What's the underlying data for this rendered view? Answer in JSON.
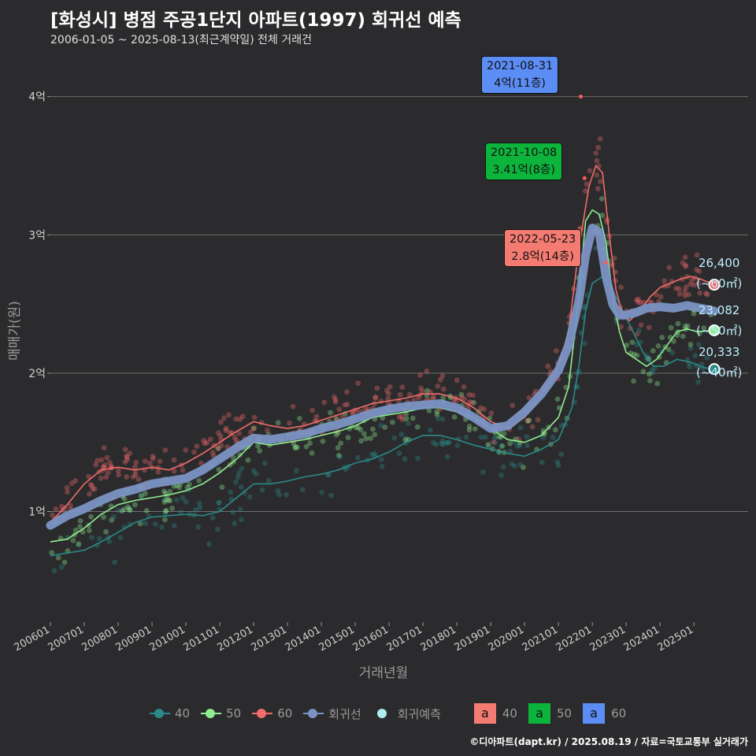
{
  "header": {
    "title": "[화성시] 병점 주공1단지 아파트(1997) 회귀선 예측",
    "subtitle": "2006-01-05 ~ 2025-08-13(최근계약일) 전체 거래건"
  },
  "footer": {
    "credit": "©디아파트(dapt.kr) / 2025.08.19 / 자료=국토교통부 실거래가"
  },
  "colors": {
    "background": "#2b2b2d",
    "grid": "#6e6e6e",
    "s40": "#2a8a8a",
    "s50": "#90ee90",
    "s60": "#f26b6b",
    "trend": "#7b93c4",
    "predict": "#aeeef0",
    "box40": "#f47b72",
    "box50": "#0db43c",
    "box60": "#5b8df5"
  },
  "chart_data": {
    "type": "scatter",
    "xlabel": "거래년월",
    "ylabel": "매매가(원)",
    "xlim": [
      2006.0,
      2026.6
    ],
    "ylim": [
      0.2,
      4.3
    ],
    "x_ticks": [
      {
        "v": 2006.0,
        "label": "200601"
      },
      {
        "v": 2007.0,
        "label": "200701"
      },
      {
        "v": 2008.0,
        "label": "200801"
      },
      {
        "v": 2009.0,
        "label": "200901"
      },
      {
        "v": 2010.0,
        "label": "201001"
      },
      {
        "v": 2011.0,
        "label": "201101"
      },
      {
        "v": 2012.0,
        "label": "201201"
      },
      {
        "v": 2013.0,
        "label": "201301"
      },
      {
        "v": 2014.0,
        "label": "201401"
      },
      {
        "v": 2015.0,
        "label": "201501"
      },
      {
        "v": 2016.0,
        "label": "201601"
      },
      {
        "v": 2017.0,
        "label": "201701"
      },
      {
        "v": 2018.0,
        "label": "201801"
      },
      {
        "v": 2019.0,
        "label": "201901"
      },
      {
        "v": 2020.0,
        "label": "202001"
      },
      {
        "v": 2021.0,
        "label": "202101"
      },
      {
        "v": 2022.0,
        "label": "202201"
      },
      {
        "v": 2023.0,
        "label": "202301"
      },
      {
        "v": 2024.0,
        "label": "202401"
      },
      {
        "v": 2025.0,
        "label": "202501"
      }
    ],
    "y_ticks": [
      {
        "v": 1,
        "label": "1억"
      },
      {
        "v": 2,
        "label": "2억"
      },
      {
        "v": 3,
        "label": "3억"
      },
      {
        "v": 4,
        "label": "4억"
      }
    ],
    "series": [
      {
        "name": "40",
        "color_key": "s40",
        "x": [
          2006.0,
          2006.5,
          2007.0,
          2007.5,
          2008.0,
          2008.5,
          2009.0,
          2009.5,
          2010.0,
          2010.5,
          2011.0,
          2011.5,
          2012.0,
          2012.5,
          2013.0,
          2013.5,
          2014.0,
          2014.5,
          2015.0,
          2015.5,
          2016.0,
          2016.5,
          2017.0,
          2017.5,
          2018.0,
          2018.5,
          2019.0,
          2019.5,
          2020.0,
          2020.5,
          2021.0,
          2021.4,
          2021.6,
          2021.8,
          2022.0,
          2022.3,
          2022.6,
          2022.9,
          2023.2,
          2023.5,
          2023.8,
          2024.1,
          2024.5,
          2024.9,
          2025.3,
          2025.6
        ],
        "values": [
          0.68,
          0.7,
          0.72,
          0.78,
          0.85,
          0.92,
          0.96,
          0.97,
          0.98,
          0.97,
          1.0,
          1.1,
          1.2,
          1.2,
          1.22,
          1.25,
          1.27,
          1.3,
          1.35,
          1.38,
          1.43,
          1.5,
          1.55,
          1.55,
          1.52,
          1.48,
          1.45,
          1.42,
          1.4,
          1.45,
          1.52,
          1.75,
          2.05,
          2.45,
          2.65,
          2.7,
          2.6,
          2.45,
          2.3,
          2.15,
          2.05,
          2.05,
          2.1,
          2.08,
          2.04,
          2.03
        ]
      },
      {
        "name": "50",
        "color_key": "s50",
        "x": [
          2006.0,
          2006.5,
          2007.0,
          2007.5,
          2008.0,
          2008.5,
          2009.0,
          2009.5,
          2010.0,
          2010.5,
          2011.0,
          2011.5,
          2012.0,
          2012.5,
          2013.0,
          2013.5,
          2014.0,
          2014.5,
          2015.0,
          2015.5,
          2016.0,
          2016.5,
          2017.0,
          2017.5,
          2018.0,
          2018.5,
          2019.0,
          2019.5,
          2020.0,
          2020.5,
          2021.0,
          2021.3,
          2021.6,
          2021.8,
          2022.0,
          2022.2,
          2022.4,
          2022.6,
          2022.8,
          2023.0,
          2023.3,
          2023.6,
          2023.9,
          2024.2,
          2024.5,
          2024.8,
          2025.1,
          2025.6
        ],
        "values": [
          0.78,
          0.8,
          0.88,
          0.98,
          1.05,
          1.08,
          1.1,
          1.12,
          1.15,
          1.2,
          1.28,
          1.38,
          1.5,
          1.48,
          1.5,
          1.52,
          1.55,
          1.58,
          1.62,
          1.68,
          1.7,
          1.72,
          1.75,
          1.75,
          1.72,
          1.68,
          1.6,
          1.52,
          1.5,
          1.55,
          1.68,
          1.9,
          2.55,
          3.1,
          3.18,
          3.15,
          2.95,
          2.55,
          2.3,
          2.15,
          2.1,
          2.05,
          2.1,
          2.2,
          2.3,
          2.32,
          2.3,
          2.31
        ]
      },
      {
        "name": "60",
        "color_key": "s60",
        "x": [
          2006.0,
          2006.5,
          2007.0,
          2007.5,
          2008.0,
          2008.5,
          2009.0,
          2009.5,
          2010.0,
          2010.5,
          2011.0,
          2011.5,
          2012.0,
          2012.5,
          2013.0,
          2013.5,
          2014.0,
          2014.5,
          2015.0,
          2015.5,
          2016.0,
          2016.5,
          2017.0,
          2017.5,
          2018.0,
          2018.5,
          2019.0,
          2019.5,
          2020.0,
          2020.5,
          2021.0,
          2021.3,
          2021.6,
          2021.9,
          2022.1,
          2022.3,
          2022.5,
          2022.7,
          2022.9,
          2023.1,
          2023.4,
          2023.7,
          2024.0,
          2024.3,
          2024.6,
          2024.9,
          2025.2,
          2025.6
        ],
        "values": [
          0.92,
          1.05,
          1.2,
          1.3,
          1.32,
          1.3,
          1.32,
          1.3,
          1.35,
          1.42,
          1.5,
          1.58,
          1.65,
          1.62,
          1.6,
          1.62,
          1.66,
          1.7,
          1.74,
          1.78,
          1.8,
          1.82,
          1.85,
          1.85,
          1.82,
          1.75,
          1.65,
          1.6,
          1.68,
          1.85,
          2.05,
          2.3,
          2.9,
          3.35,
          3.5,
          3.45,
          3.0,
          2.6,
          2.42,
          2.38,
          2.45,
          2.55,
          2.62,
          2.65,
          2.68,
          2.7,
          2.68,
          2.64
        ]
      }
    ],
    "trend": {
      "name": "회귀선",
      "x": [
        2006.0,
        2006.5,
        2007.0,
        2007.5,
        2008.0,
        2008.5,
        2009.0,
        2009.5,
        2010.0,
        2010.5,
        2011.0,
        2011.5,
        2012.0,
        2012.5,
        2013.0,
        2013.5,
        2014.0,
        2014.5,
        2015.0,
        2015.5,
        2016.0,
        2016.5,
        2017.0,
        2017.5,
        2018.0,
        2018.5,
        2019.0,
        2019.5,
        2020.0,
        2020.5,
        2021.0,
        2021.3,
        2021.6,
        2021.8,
        2022.0,
        2022.2,
        2022.4,
        2022.6,
        2022.8,
        2023.0,
        2023.3,
        2023.6,
        2024.0,
        2024.4,
        2024.8,
        2025.2,
        2025.6
      ],
      "values": [
        0.9,
        0.97,
        1.02,
        1.08,
        1.13,
        1.16,
        1.2,
        1.22,
        1.24,
        1.3,
        1.38,
        1.46,
        1.53,
        1.52,
        1.54,
        1.56,
        1.6,
        1.63,
        1.67,
        1.71,
        1.74,
        1.76,
        1.77,
        1.78,
        1.75,
        1.68,
        1.6,
        1.62,
        1.72,
        1.85,
        2.02,
        2.2,
        2.52,
        2.85,
        3.05,
        3.02,
        2.7,
        2.5,
        2.42,
        2.42,
        2.44,
        2.47,
        2.48,
        2.47,
        2.49,
        2.47,
        2.45
      ]
    },
    "scatter_density": {
      "s40": {
        "spread": 0.09,
        "count": 170
      },
      "s50": {
        "spread": 0.08,
        "count": 230
      },
      "s60": {
        "spread": 0.07,
        "count": 320
      }
    },
    "annotations": [
      {
        "date": "2021-08-31",
        "value_text": "4억(11층)",
        "color_key": "box60"
      },
      {
        "date": "2021-10-08",
        "value_text": "3.41억(8층)",
        "color_key": "box50"
      },
      {
        "date": "2022-05-23",
        "value_text": "2.8억(14층)",
        "color_key": "box40"
      }
    ],
    "end_labels": [
      {
        "value": "26,400",
        "area": "(~60㎡)",
        "color_key": "s60",
        "y": 2.64
      },
      {
        "value": "23,082",
        "area": "(~50㎡)",
        "color_key": "s50",
        "y": 2.31
      },
      {
        "value": "20,333",
        "area": "(~40㎡)",
        "color_key": "s40",
        "y": 2.03
      }
    ],
    "legend": {
      "lines": [
        {
          "label": "40",
          "color_key": "s40",
          "kind": "dotline"
        },
        {
          "label": "50",
          "color_key": "s50",
          "kind": "dotline"
        },
        {
          "label": "60",
          "color_key": "s60",
          "kind": "dotline"
        },
        {
          "label": "회귀선",
          "color_key": "trend",
          "kind": "dotline"
        },
        {
          "label": "회귀예측",
          "color_key": "predict",
          "kind": "dot"
        }
      ],
      "boxes": [
        {
          "glyph": "a",
          "label": "40",
          "color_key": "box40"
        },
        {
          "glyph": "a",
          "label": "50",
          "color_key": "box50"
        },
        {
          "glyph": "a",
          "label": "60",
          "color_key": "box60"
        }
      ]
    }
  }
}
